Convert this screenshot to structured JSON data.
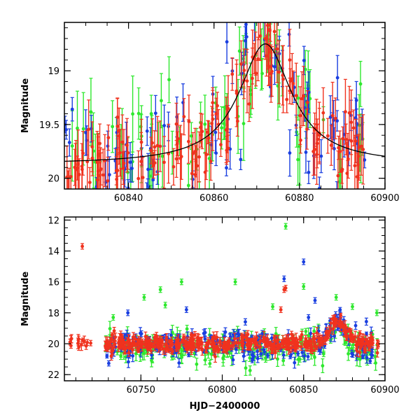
{
  "chart_data": [
    {
      "type": "scatter",
      "panel": "top",
      "xlabel": "",
      "ylabel": "Magnitude",
      "xlim": [
        60825,
        60900
      ],
      "ylim": [
        20.1,
        18.55
      ],
      "y_inverted": true,
      "x_ticks": [
        60840,
        60860,
        60880,
        60900
      ],
      "y_ticks": [
        19,
        19.5,
        20
      ],
      "x_tick_labels": [
        "60840",
        "60860",
        "60880",
        "60900"
      ],
      "y_tick_labels": [
        "19",
        "19.5",
        "20"
      ],
      "grid": false,
      "legend": "none",
      "colors": {
        "green": "#2ee82e",
        "blue": "#1a3fe0",
        "red": "#f0321e",
        "model": "#000000"
      },
      "model_curve": {
        "baseline": 19.87,
        "peak_time": 60872,
        "peak_mag": 18.75,
        "timescale_days": 7.5
      },
      "series_summary": {
        "green": {
          "x_range": [
            60825,
            60896
          ],
          "typical_error": 0.2
        },
        "blue": {
          "x_range": [
            60825,
            60896
          ],
          "typical_error": 0.12
        },
        "red": {
          "x_range": [
            60825,
            60896
          ],
          "typical_error": 0.18
        }
      }
    },
    {
      "type": "scatter",
      "panel": "bottom",
      "xlabel": "HJD−2400000",
      "ylabel": "Magnitude",
      "xlim": [
        60703,
        60900
      ],
      "ylim": [
        22.4,
        11.8
      ],
      "y_inverted": true,
      "x_ticks": [
        60750,
        60800,
        60850,
        60900
      ],
      "y_ticks": [
        12,
        14,
        16,
        18,
        20,
        22
      ],
      "x_tick_labels": [
        "60750",
        "60800",
        "60850",
        "60900"
      ],
      "y_tick_labels": [
        "12",
        "14",
        "16",
        "18",
        "20",
        "22"
      ],
      "grid": false,
      "legend": "none",
      "colors": {
        "green": "#2ee82e",
        "blue": "#1a3fe0",
        "red": "#f0321e"
      },
      "outliers": {
        "red": [
          [
            60714,
            13.7
          ],
          [
            60838,
            16.5
          ],
          [
            60839,
            16.4
          ],
          [
            60836,
            17.8
          ]
        ],
        "green": [
          [
            60839,
            12.4
          ],
          [
            60775,
            16.0
          ],
          [
            60762,
            16.5
          ],
          [
            60808,
            16.0
          ],
          [
            60850,
            16.3
          ],
          [
            60752,
            17.0
          ],
          [
            60831,
            17.6
          ],
          [
            60765,
            17.5
          ],
          [
            60870,
            17.0
          ],
          [
            60880,
            17.6
          ],
          [
            60895,
            18.0
          ],
          [
            60733,
            18.3
          ]
        ],
        "blue": [
          [
            60850,
            14.7
          ],
          [
            60838,
            15.8
          ],
          [
            60857,
            17.2
          ],
          [
            60742,
            18.0
          ],
          [
            60778,
            17.8
          ],
          [
            60853,
            18.3
          ]
        ]
      },
      "series_summary": {
        "red": {
          "x_range": [
            60706,
            60896
          ],
          "baseline": 20.0
        },
        "green": {
          "x_range": [
            60728,
            60896
          ],
          "baseline": 20.2
        },
        "blue": {
          "x_range": [
            60728,
            60896
          ],
          "baseline": 20.1
        }
      }
    }
  ]
}
